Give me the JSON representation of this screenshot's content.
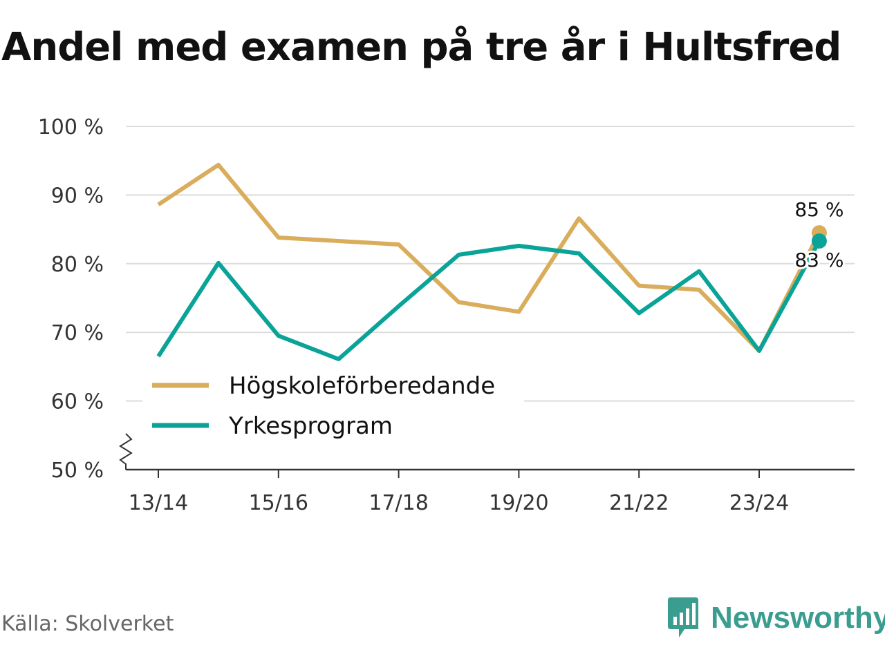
{
  "title": "Andel med examen på tre år i Hultsfred",
  "source": "Källa: Skolverket",
  "brand": {
    "name": "Newsworthy",
    "icon": "newsworthy-logo-icon",
    "color": "#3a9d8f"
  },
  "chart_data": {
    "type": "line",
    "title": "Andel med examen på tre år i Hultsfred",
    "xlabel": "",
    "ylabel": "",
    "ylim": [
      50,
      100
    ],
    "y_ticks": [
      50,
      60,
      70,
      80,
      90,
      100
    ],
    "y_tick_labels": [
      "50 %",
      "60 %",
      "70 %",
      "80 %",
      "90 %",
      "100 %"
    ],
    "y_axis_break": true,
    "grid": true,
    "categories": [
      "13/14",
      "14/15",
      "15/16",
      "16/17",
      "17/18",
      "18/19",
      "19/20",
      "20/21",
      "21/22",
      "22/23",
      "23/24",
      "24/25"
    ],
    "x_tick_labels": [
      "13/14",
      "",
      "15/16",
      "",
      "17/18",
      "",
      "19/20",
      "",
      "21/22",
      "",
      "23/24",
      ""
    ],
    "series": [
      {
        "name": "Högskoleförberedande",
        "color": "#d9ad5b",
        "values": [
          88.6,
          94.4,
          83.8,
          83.3,
          82.8,
          74.4,
          73.0,
          86.6,
          76.8,
          76.2,
          67.3,
          84.5
        ],
        "end_label": "85 %"
      },
      {
        "name": "Yrkesprogram",
        "color": "#0aa398",
        "values": [
          66.5,
          80.1,
          69.5,
          66.1,
          73.8,
          81.3,
          82.6,
          81.5,
          72.8,
          78.9,
          67.3,
          83.3
        ],
        "end_label": "83 %"
      }
    ],
    "legend": "lower-left inside plot"
  }
}
